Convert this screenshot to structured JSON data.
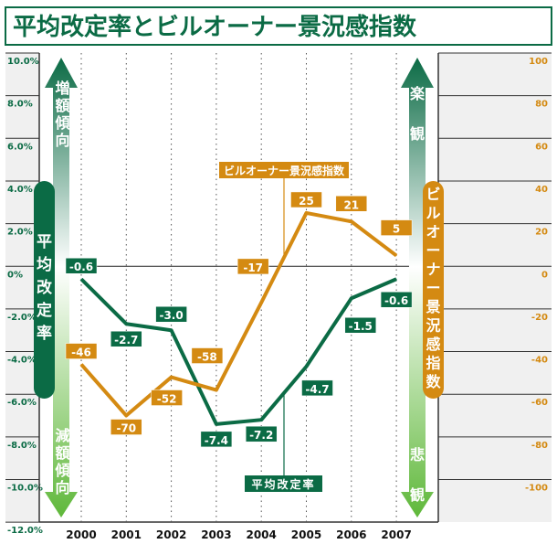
{
  "chart_data": {
    "type": "line",
    "title": "平均改定率とビルオーナー景況感指数",
    "categories": [
      "2000",
      "2001",
      "2002",
      "2003",
      "2004",
      "2005",
      "2006",
      "2007"
    ],
    "series": [
      {
        "name": "平均改定率",
        "axis": "left",
        "color": "#0b6b45",
        "values": [
          -0.6,
          -2.7,
          -3.0,
          -7.4,
          -7.2,
          -4.7,
          -1.5,
          -0.6
        ],
        "labels": [
          "-0.6",
          "-2.7",
          "-3.0",
          "-7.4",
          "-7.2",
          "-4.7",
          "-1.5",
          "-0.6"
        ]
      },
      {
        "name": "ビルオーナー景況感指数",
        "axis": "right",
        "color": "#d48a12",
        "values": [
          -46,
          -70,
          -52,
          -58,
          -17,
          25,
          21,
          5
        ],
        "labels": [
          "-46",
          "-70",
          "-52",
          "-58",
          "-17",
          "25",
          "21",
          "5"
        ]
      }
    ],
    "left_axis": {
      "ylim": [
        -12,
        10
      ],
      "ticks": [
        "10.0%",
        "8.0%",
        "6.0%",
        "4.0%",
        "2.0%",
        "0%",
        "-2.0%",
        "-4.0%",
        "-6.0%",
        "-8.0%",
        "-10.0%",
        "-12.0%"
      ]
    },
    "right_axis": {
      "ylim": [
        -100,
        100
      ],
      "ticks": [
        "100",
        "80",
        "60",
        "40",
        "20",
        "0",
        "-20",
        "-40",
        "-60",
        "-80",
        "-100"
      ]
    },
    "left_axis_title": "平均改定率",
    "right_axis_title": "ビルオーナー景況感指数",
    "left_arrow_up": "増額傾向",
    "left_arrow_down": "減額傾向",
    "right_arrow_up": "楽観",
    "right_arrow_down": "悲観",
    "grid": true
  }
}
